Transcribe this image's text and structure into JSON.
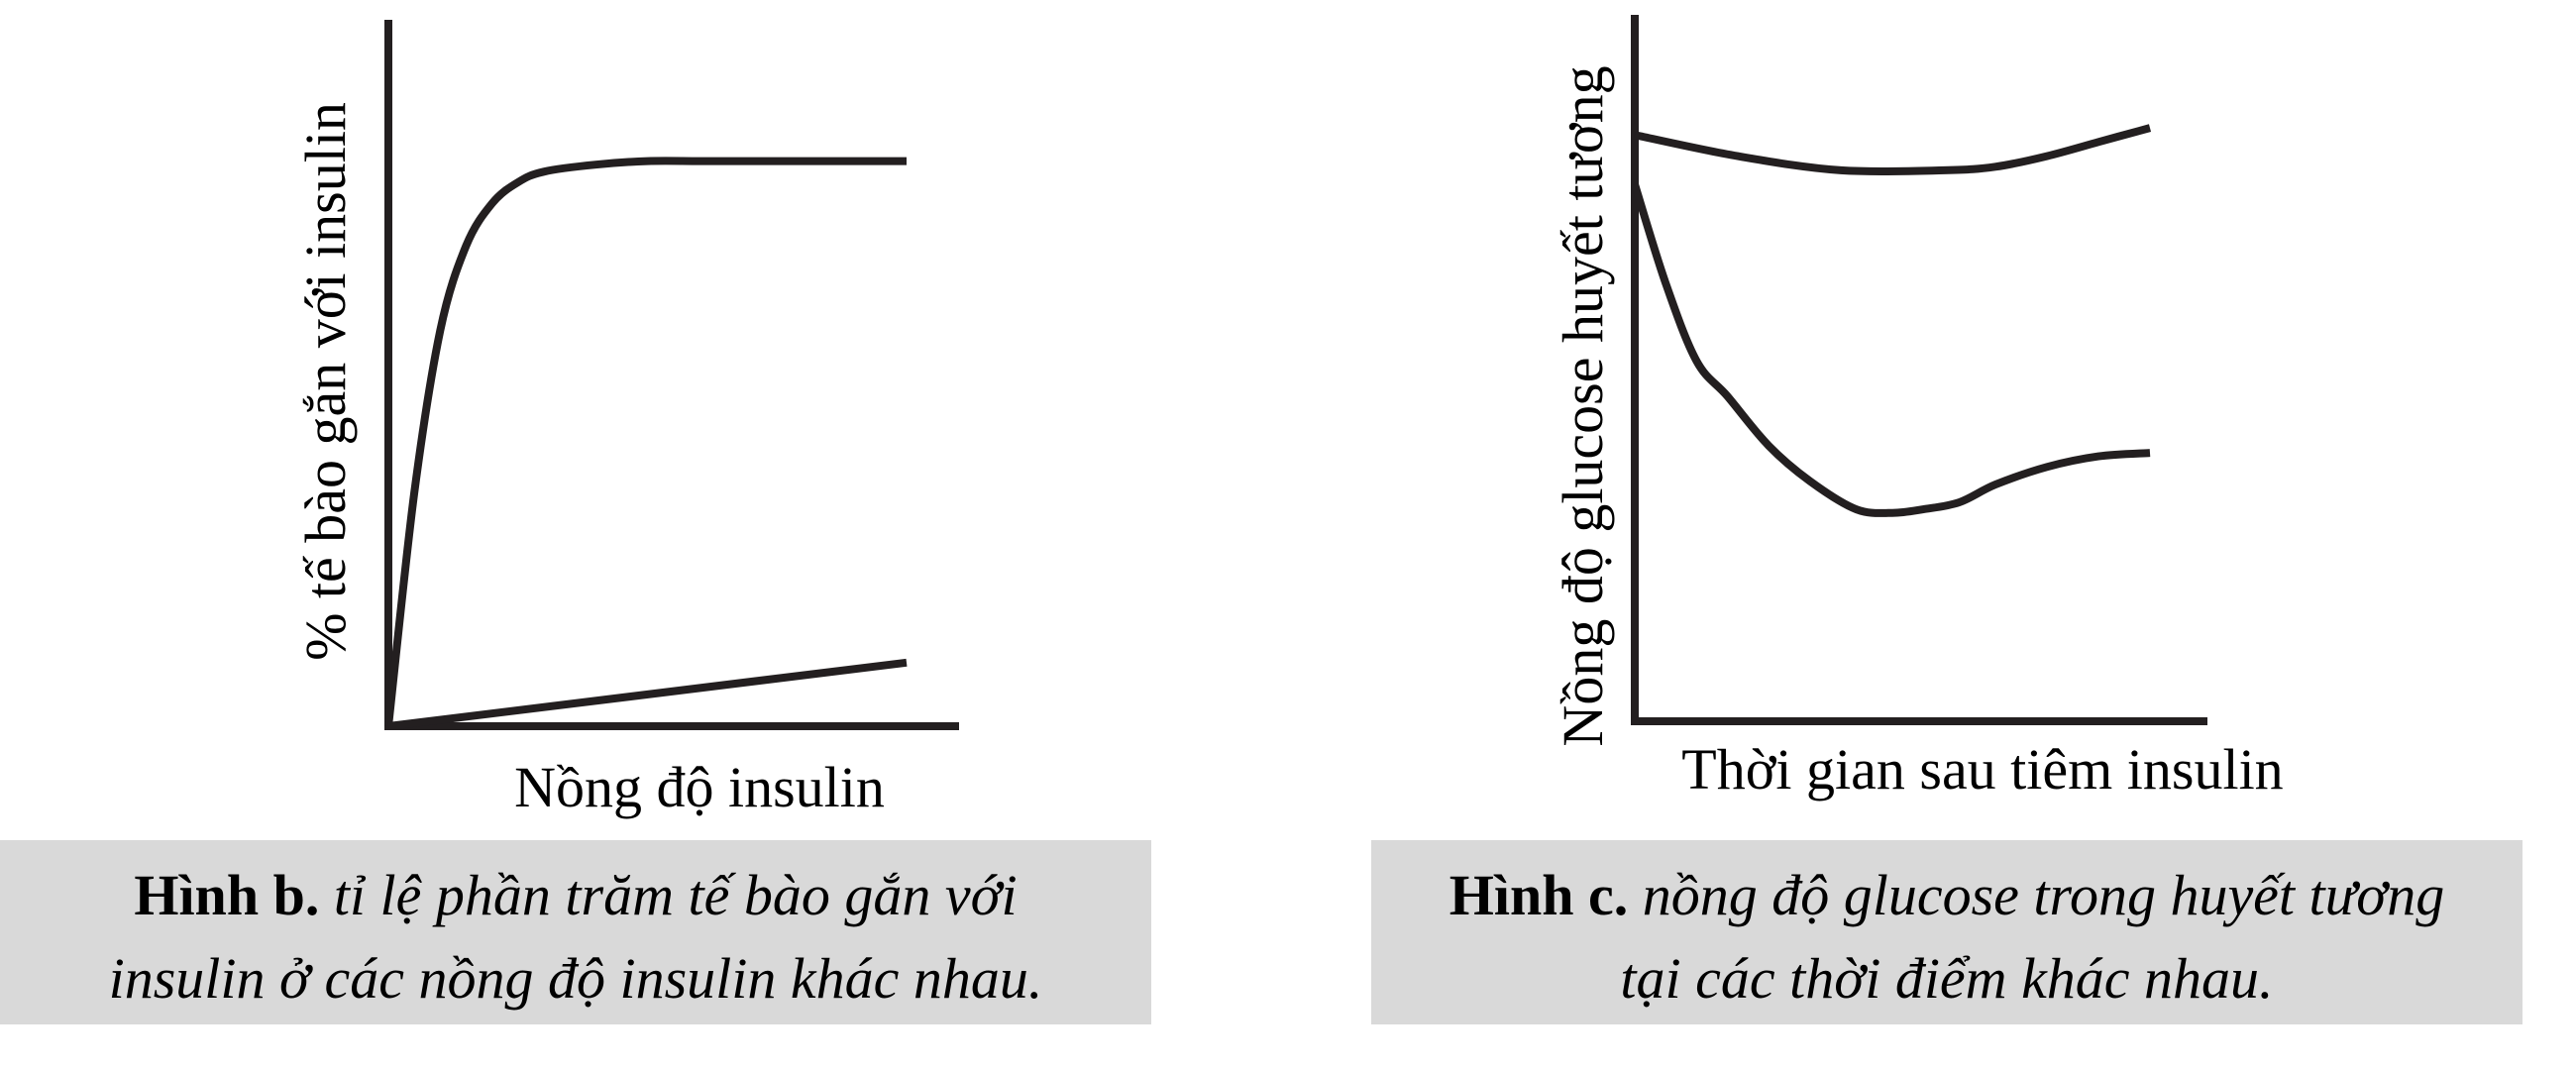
{
  "chart_data": [
    {
      "id": "figure-b",
      "type": "line",
      "title": "",
      "xlabel": "Nồng độ insulin",
      "ylabel": "% tế bào gắn với insulin",
      "ticks": "none",
      "grid": false,
      "legend": "none",
      "xlim": [
        0,
        10
      ],
      "ylim": [
        0,
        100
      ],
      "series": [
        {
          "x": [
            0,
            0.5,
            1,
            1.5,
            2,
            2.5,
            3,
            4,
            5,
            6,
            7,
            8,
            9,
            10
          ],
          "y": [
            0,
            33,
            56,
            68,
            74,
            77,
            78.5,
            79.5,
            80,
            80,
            80,
            80,
            80,
            80
          ]
        },
        {
          "x": [
            0,
            10
          ],
          "y": [
            0,
            9
          ]
        }
      ]
    },
    {
      "id": "figure-c",
      "type": "line",
      "title": "",
      "xlabel": "Thời gian sau tiêm insulin",
      "ylabel": "Nồng độ glucose huyết tương",
      "ticks": "none",
      "grid": false,
      "legend": "none",
      "xlim": [
        0,
        10
      ],
      "ylim": [
        0,
        100
      ],
      "series": [
        {
          "x": [
            0,
            2,
            4,
            6,
            7,
            8,
            9,
            10
          ],
          "y": [
            83,
            80,
            78,
            78,
            78.5,
            80,
            82,
            84
          ]
        },
        {
          "x": [
            0,
            0.6,
            1.2,
            1.8,
            2.6,
            3.4,
            4.3,
            5,
            5.6,
            6.3,
            7,
            8,
            9,
            10
          ],
          "y": [
            76,
            62,
            51,
            46,
            39,
            34,
            30,
            29.5,
            30,
            31,
            33.5,
            36,
            37.5,
            38
          ]
        }
      ]
    }
  ],
  "captions": {
    "figure_b": {
      "lead": "Hình b.",
      "text_line1": "tỉ lệ phần trăm tế bào gắn với",
      "text_line2": "insulin ở các nồng độ insulin khác nhau."
    },
    "figure_c": {
      "lead": "Hình c.",
      "text_line1": "nồng độ glucose trong huyết tương",
      "text_line2": "tại các thời điểm khác nhau."
    }
  },
  "colors": {
    "ink": "#231f20",
    "caption_background": "#d9d9d9"
  }
}
